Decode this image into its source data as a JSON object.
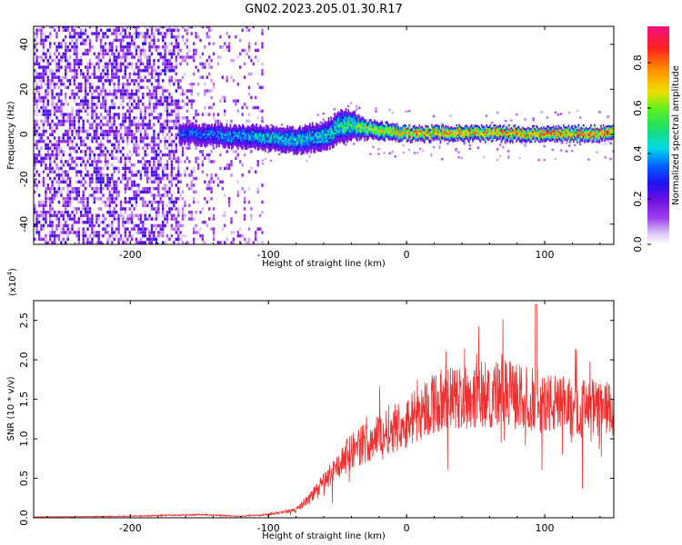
{
  "figure": {
    "title": "GN02.2023.205.01.30.R17"
  },
  "colors": {
    "snr_line": "#f03030",
    "axis": "#000000",
    "colormap": [
      "#ffffff",
      "#dcc8f5",
      "#a040f0",
      "#7010e0",
      "#2010f0",
      "#0060ff",
      "#00d8e8",
      "#20e060",
      "#60f020",
      "#f0e000",
      "#ff9000",
      "#ff2020",
      "#f01080"
    ]
  },
  "chart_data": [
    {
      "type": "heatmap",
      "title": "GN02.2023.205.01.30.R17",
      "xlabel": "Height of straight line (km)",
      "ylabel": "Frequency (Hz)",
      "xlim": [
        -270,
        150
      ],
      "ylim": [
        -49,
        48
      ],
      "x_ticks": [
        -200,
        -100,
        0,
        100
      ],
      "x_tick_labels": [
        "-200",
        "-100",
        "0",
        "100"
      ],
      "y_ticks": [
        -40,
        -20,
        0,
        20,
        40
      ],
      "y_tick_labels": [
        "-40",
        "-20",
        "0",
        "20",
        "40"
      ],
      "colorbar": {
        "label": "Normalized spectral amplitude",
        "range": [
          0,
          0.96
        ],
        "ticks": [
          0.0,
          0.2,
          0.4,
          0.6,
          0.8
        ],
        "tick_labels": [
          "0.0",
          "0.2",
          "0.4",
          "0.6",
          "0.8"
        ]
      },
      "signal_band": {
        "center_hz": [
          [
            -165,
            0
          ],
          [
            -100,
            -2
          ],
          [
            -80,
            -3
          ],
          [
            -60,
            -1
          ],
          [
            -45,
            4
          ],
          [
            -30,
            2
          ],
          [
            0,
            0
          ],
          [
            150,
            0
          ]
        ],
        "halfwidth_hz": [
          [
            -165,
            4
          ],
          [
            -100,
            5
          ],
          [
            -60,
            6
          ],
          [
            -45,
            7
          ],
          [
            -30,
            4
          ],
          [
            0,
            3
          ],
          [
            150,
            3
          ]
        ],
        "peak_amplitude": [
          [
            -165,
            0.35
          ],
          [
            -100,
            0.45
          ],
          [
            -60,
            0.45
          ],
          [
            -40,
            0.55
          ],
          [
            0,
            0.8
          ],
          [
            150,
            0.85
          ]
        ]
      },
      "noise_region": {
        "x_start": -270,
        "x_end": -105,
        "dense_until": -165
      }
    },
    {
      "type": "line",
      "xlabel": "Height of straight line (km)",
      "ylabel": "SNR (10 * v/v)",
      "y_scale_label": "(x10^4)",
      "y_scale_base": "(x10",
      "y_scale_exp": "4",
      "y_scale_close": ")",
      "xlim": [
        -270,
        150
      ],
      "ylim": [
        0,
        2.75
      ],
      "x_ticks": [
        -200,
        -100,
        0,
        100
      ],
      "x_tick_labels": [
        "-200",
        "-100",
        "0",
        "100"
      ],
      "y_ticks": [
        0.0,
        0.5,
        1.0,
        1.5,
        2.0,
        2.5
      ],
      "y_tick_labels": [
        "0.0",
        "0.5",
        "1.0",
        "1.5",
        "2.0",
        "2.5"
      ],
      "envelope": {
        "x": [
          -270,
          -200,
          -150,
          -120,
          -100,
          -80,
          -70,
          -60,
          -50,
          -40,
          -30,
          -20,
          -10,
          0,
          10,
          20,
          30,
          50,
          70,
          90,
          110,
          130,
          150
        ],
        "y": [
          0.01,
          0.02,
          0.04,
          0.02,
          0.04,
          0.1,
          0.25,
          0.45,
          0.65,
          0.85,
          0.95,
          1.05,
          1.15,
          1.2,
          1.35,
          1.45,
          1.5,
          1.55,
          1.58,
          1.5,
          1.42,
          1.38,
          1.35
        ]
      }
    }
  ]
}
